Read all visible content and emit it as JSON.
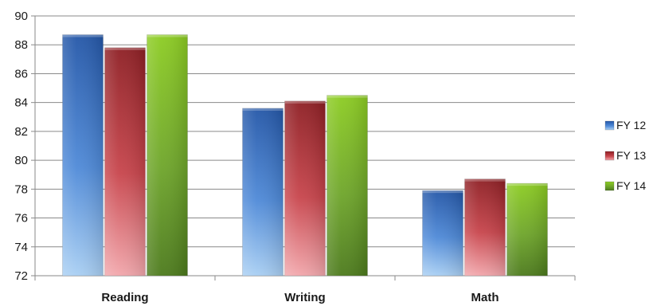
{
  "chart_data": {
    "type": "bar",
    "categories": [
      "Reading",
      "Writing",
      "Math"
    ],
    "series": [
      {
        "name": "FY 12",
        "values": [
          88.7,
          83.6,
          77.9
        ],
        "color": "#3f7fd0"
      },
      {
        "name": "FY 13",
        "values": [
          87.8,
          84.1,
          78.7
        ],
        "color": "#c0343b"
      },
      {
        "name": "FY 14",
        "values": [
          88.7,
          84.5,
          78.4
        ],
        "color": "#7fb52a"
      }
    ],
    "y_ticks": [
      "72",
      "74",
      "76",
      "78",
      "80",
      "82",
      "84",
      "86",
      "88",
      "90"
    ],
    "ylim": [
      72,
      90
    ],
    "grid": true,
    "legend_position": "right",
    "title": "",
    "xlabel": "",
    "ylabel": ""
  }
}
